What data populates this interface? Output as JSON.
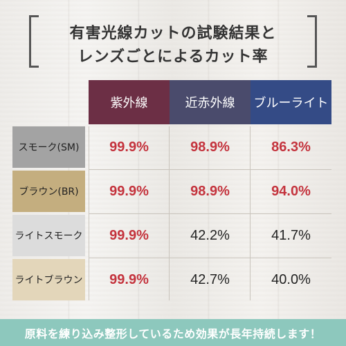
{
  "title": {
    "line1": "有害光線カットの試験結果と",
    "line2": "レンズごとによるカット率"
  },
  "table": {
    "columns": [
      {
        "label": "紫外線",
        "color": "#6c2f45"
      },
      {
        "label": "近赤外線",
        "color": "#4a4b6c"
      },
      {
        "label": "ブルーライト",
        "color": "#344b86"
      }
    ],
    "rows": [
      {
        "label": "スモーク(SM)",
        "label_bg": "#a3a3a3",
        "values": [
          "99.9%",
          "98.9%",
          "86.3%"
        ],
        "value_colors": [
          "red",
          "red",
          "red"
        ]
      },
      {
        "label": "ブラウン(BR)",
        "label_bg": "#c4ae7f",
        "values": [
          "99.9%",
          "98.9%",
          "94.0%"
        ],
        "value_colors": [
          "red",
          "red",
          "red"
        ]
      },
      {
        "label": "ライトスモーク",
        "label_bg": "#dcdcdc",
        "values": [
          "99.9%",
          "42.2%",
          "41.7%"
        ],
        "value_colors": [
          "red",
          "dark",
          "dark"
        ]
      },
      {
        "label": "ライトブラウン",
        "label_bg": "#e3d6ba",
        "values": [
          "99.9%",
          "42.7%",
          "40.0%"
        ],
        "value_colors": [
          "red",
          "dark",
          "dark"
        ]
      }
    ]
  },
  "banner": {
    "text": "原料を練り込み整形しているため効果が長年持続します！",
    "bg": "#8dc8bd"
  }
}
